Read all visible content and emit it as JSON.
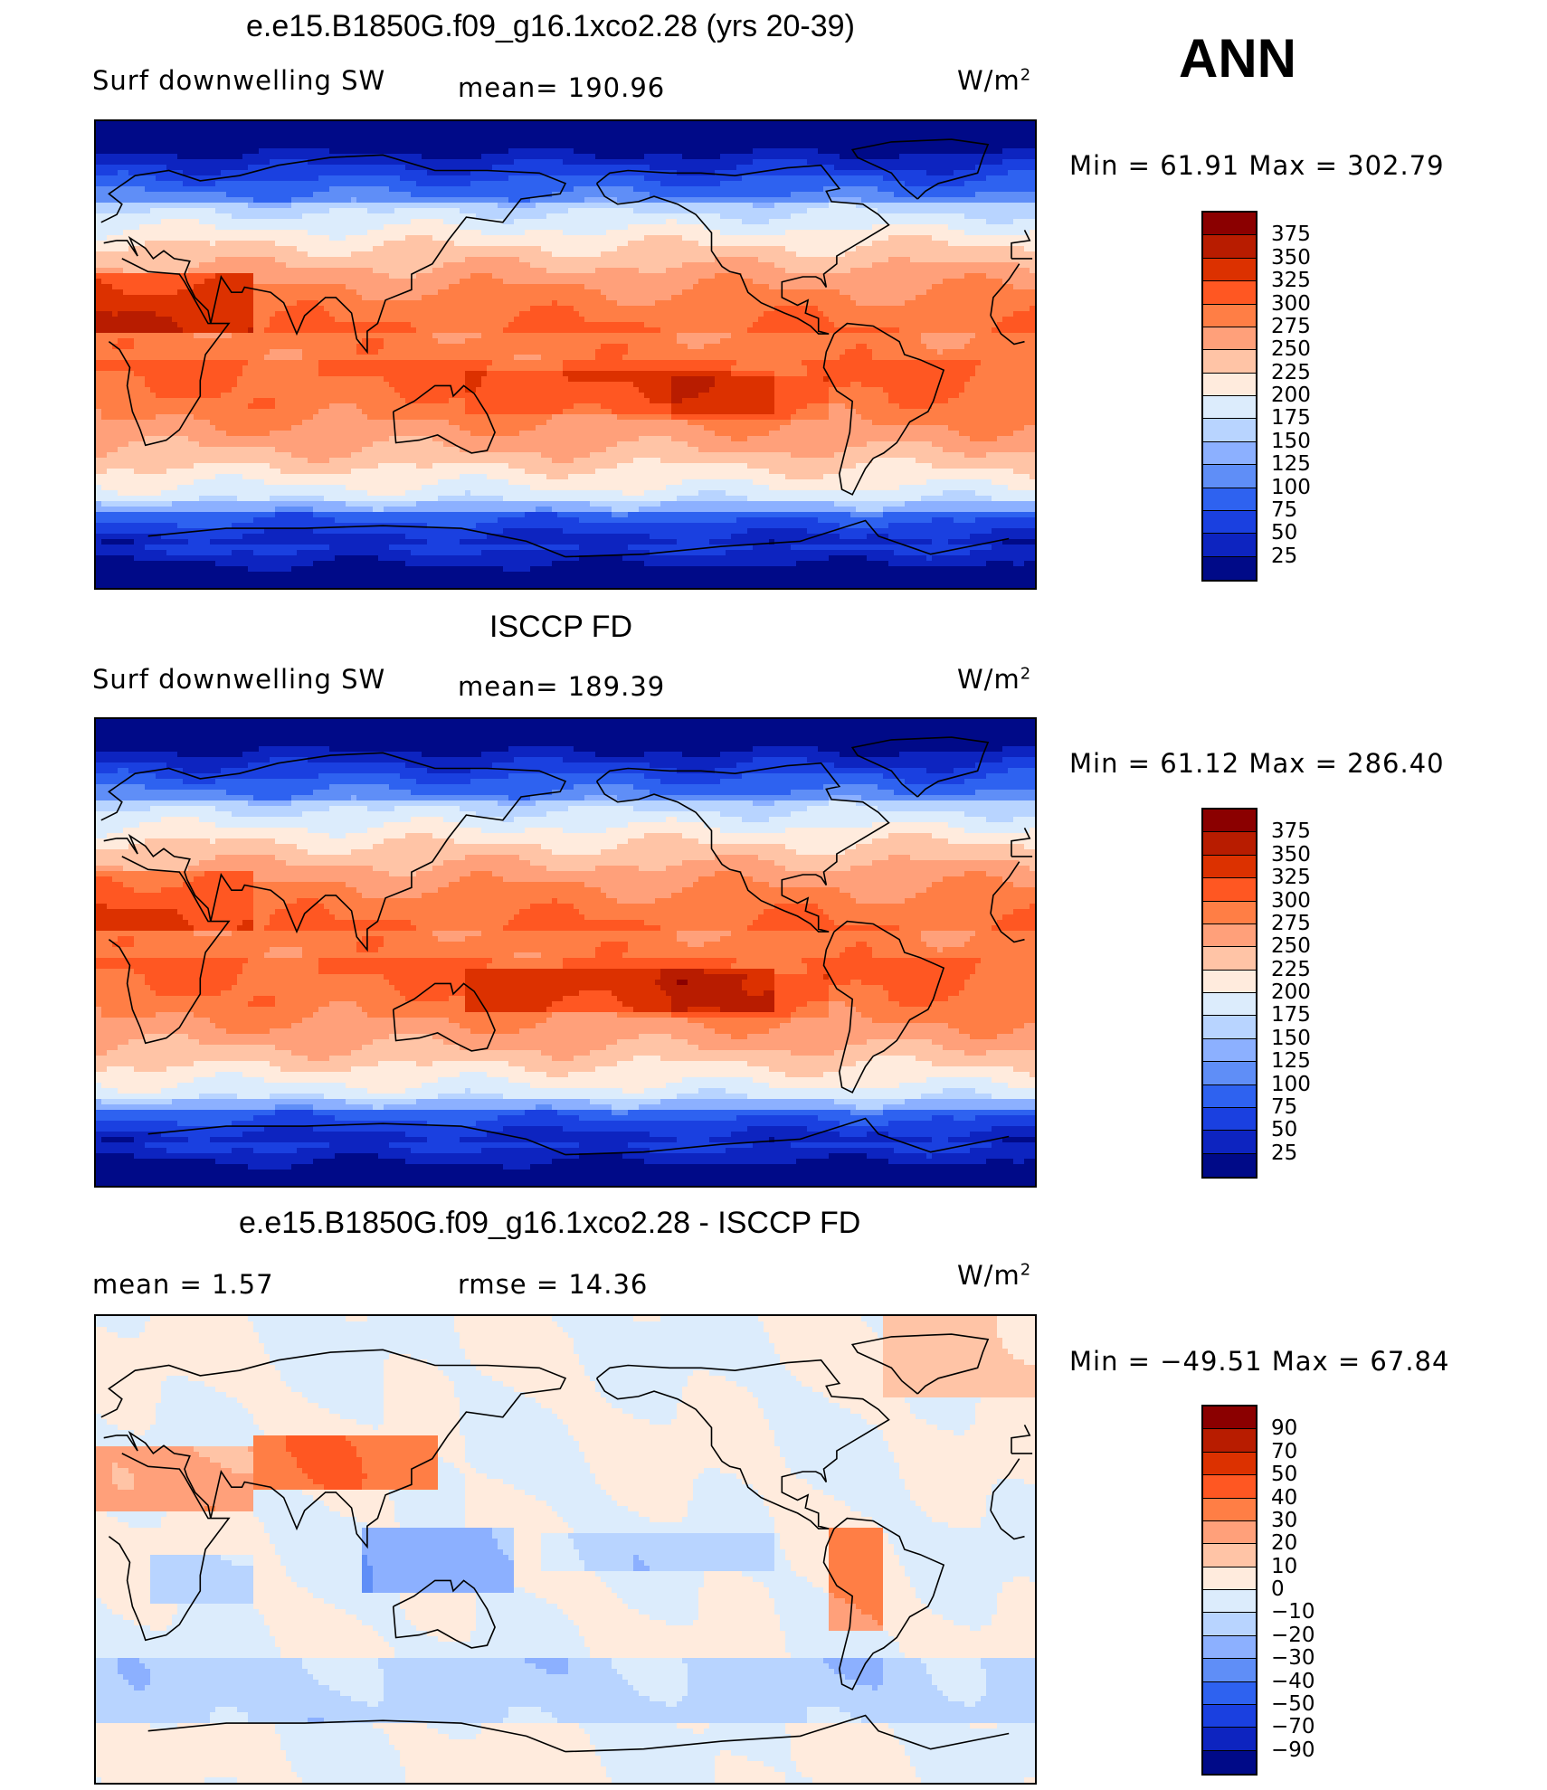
{
  "header": {
    "season": "ANN"
  },
  "panels": [
    {
      "title": "e.e15.B1850G.f09_g16.1xco2.28 (yrs 20-39)",
      "left_label": "Surf  downwelling  SW",
      "center_label": "mean=  190.96",
      "units": "W/m",
      "units_sup": "2",
      "minmax": "Min  =     61.91  Max  =  302.79"
    },
    {
      "title": "ISCCP FD",
      "left_label": "Surf  downwelling  SW",
      "center_label": "mean=  189.39",
      "units": "W/m",
      "units_sup": "2",
      "minmax": "Min  =     61.12  Max  =  286.40"
    },
    {
      "title": "e.e15.B1850G.f09_g16.1xco2.28 - ISCCP FD",
      "left_label": "mean  =       1.57",
      "center_label": "rmse  =     14.36",
      "units": "W/m",
      "units_sup": "2",
      "minmax": "Min  = −49.51  Max  =     67.84"
    }
  ],
  "chart_data": [
    {
      "type": "heatmap",
      "title": "e.e15.B1850G.f09_g16.1xco2.28 (yrs 20-39)",
      "variable": "Surf downwelling SW",
      "units": "W/m2",
      "mean": 190.96,
      "min": 61.91,
      "max": 302.79,
      "colorbar_levels": [
        "375",
        "350",
        "325",
        "300",
        "275",
        "250",
        "225",
        "200",
        "175",
        "150",
        "125",
        "100",
        "75",
        "50",
        "25"
      ],
      "colors": [
        "#8b0000",
        "#b81c00",
        "#dc3100",
        "#ff5722",
        "#ff7e45",
        "#ffa07a",
        "#ffc4a6",
        "#ffebdd",
        "#dcecfc",
        "#b8d4ff",
        "#8cb0ff",
        "#5f8ef7",
        "#2e62f0",
        "#1a40e0",
        "#0d24c0",
        "#000a88"
      ]
    },
    {
      "type": "heatmap",
      "title": "ISCCP FD",
      "variable": "Surf downwelling SW",
      "units": "W/m2",
      "mean": 189.39,
      "min": 61.12,
      "max": 286.4,
      "colorbar_levels": [
        "375",
        "350",
        "325",
        "300",
        "275",
        "250",
        "225",
        "200",
        "175",
        "150",
        "125",
        "100",
        "75",
        "50",
        "25"
      ],
      "colors": [
        "#8b0000",
        "#b81c00",
        "#dc3100",
        "#ff5722",
        "#ff7e45",
        "#ffa07a",
        "#ffc4a6",
        "#ffebdd",
        "#dcecfc",
        "#b8d4ff",
        "#8cb0ff",
        "#5f8ef7",
        "#2e62f0",
        "#1a40e0",
        "#0d24c0",
        "#000a88"
      ]
    },
    {
      "type": "heatmap",
      "title": "e.e15.B1850G.f09_g16.1xco2.28 - ISCCP FD",
      "units": "W/m2",
      "mean": 1.57,
      "rmse": 14.36,
      "min": -49.51,
      "max": 67.84,
      "colorbar_levels": [
        "90",
        "70",
        "50",
        "40",
        "30",
        "20",
        "10",
        "0",
        "−10",
        "−20",
        "−30",
        "−40",
        "−50",
        "−70",
        "−90"
      ],
      "colors": [
        "#8b0000",
        "#b81c00",
        "#dc3100",
        "#ff5722",
        "#ff7e45",
        "#ffa07a",
        "#ffc4a6",
        "#ffebdd",
        "#dcecfc",
        "#b8d4ff",
        "#8cb0ff",
        "#5f8ef7",
        "#2e62f0",
        "#1a40e0",
        "#0d24c0",
        "#000a88"
      ]
    }
  ]
}
